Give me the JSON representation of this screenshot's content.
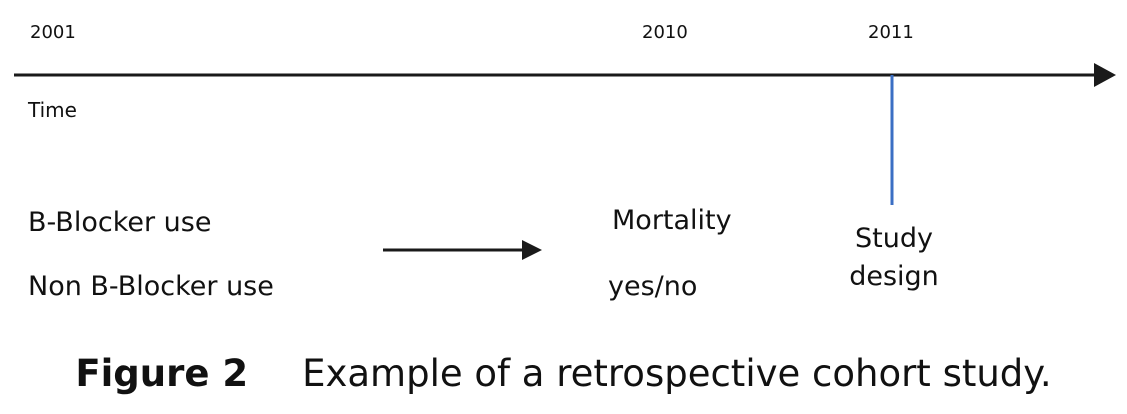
{
  "timeline": {
    "years": [
      "2001",
      "2010",
      "2011"
    ],
    "axis_label": "Time"
  },
  "exposure": {
    "group_1": "B-Blocker use",
    "group_2": "Non B-Blocker use"
  },
  "outcome": {
    "label": "Mortality",
    "values": "yes/no"
  },
  "study_point": {
    "label_line_1": "Study",
    "label_line_2": "design"
  },
  "caption": {
    "label": "Figure 2",
    "text": "Example of a retrospective cohort study."
  },
  "colors": {
    "axis": "#1a1a1a",
    "study_marker": "#3b6fc4"
  }
}
